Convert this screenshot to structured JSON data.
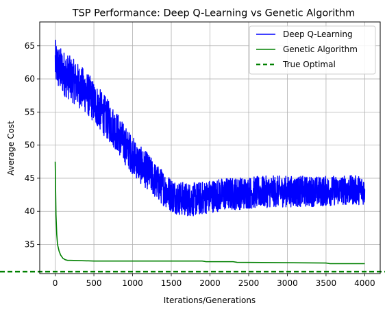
{
  "chart_data": {
    "type": "line",
    "title": "TSP Performance: Deep Q-Learning vs Genetic Algorithm",
    "xlabel": "Iterations/Generations",
    "ylabel": "Average Cost",
    "xlim": [
      -200,
      4200
    ],
    "ylim": [
      30.6,
      68.6
    ],
    "xticks": [
      0,
      500,
      1000,
      1500,
      2000,
      2500,
      3000,
      3500,
      4000
    ],
    "yticks": [
      35,
      40,
      45,
      50,
      55,
      60,
      65
    ],
    "grid": true,
    "legend_position": "top-right",
    "series": [
      {
        "name": "Deep Q-Learning",
        "color": "#0000ff",
        "style": "solid",
        "trend": {
          "x": [
            0,
            50,
            100,
            200,
            300,
            400,
            500,
            600,
            700,
            800,
            900,
            1000,
            1100,
            1200,
            1300,
            1400,
            1500,
            1600,
            1700,
            1800,
            1900,
            2000,
            2200,
            2500,
            2800,
            3100,
            3400,
            3700,
            4000
          ],
          "y": [
            62.5,
            61.5,
            61.0,
            60.0,
            59.0,
            58.0,
            56.5,
            55.0,
            53.5,
            52.0,
            50.0,
            48.5,
            47.0,
            46.0,
            44.5,
            43.5,
            42.5,
            42.0,
            41.8,
            41.8,
            42.0,
            42.3,
            42.6,
            42.8,
            43.0,
            43.0,
            43.0,
            43.2,
            43.2
          ]
        },
        "noise_amplitude": [
          {
            "x": 0,
            "amp": 3.5
          },
          {
            "x": 1500,
            "amp": 2.6
          },
          {
            "x": 4000,
            "amp": 2.2
          }
        ]
      },
      {
        "name": "Genetic Algorithm",
        "color": "#008000",
        "style": "solid",
        "x": [
          0,
          10,
          20,
          30,
          50,
          70,
          100,
          130,
          160,
          200,
          500,
          1000,
          1400,
          1900,
          1950,
          2300,
          2350,
          3500,
          3550,
          4000
        ],
        "y": [
          47.5,
          39.5,
          36.5,
          35.0,
          34.0,
          33.4,
          32.9,
          32.7,
          32.6,
          32.6,
          32.5,
          32.5,
          32.5,
          32.5,
          32.4,
          32.4,
          32.3,
          32.2,
          32.1,
          32.1
        ]
      },
      {
        "name": "True Optimal",
        "color": "#008000",
        "style": "dashed",
        "y_const": 30.9
      }
    ]
  }
}
